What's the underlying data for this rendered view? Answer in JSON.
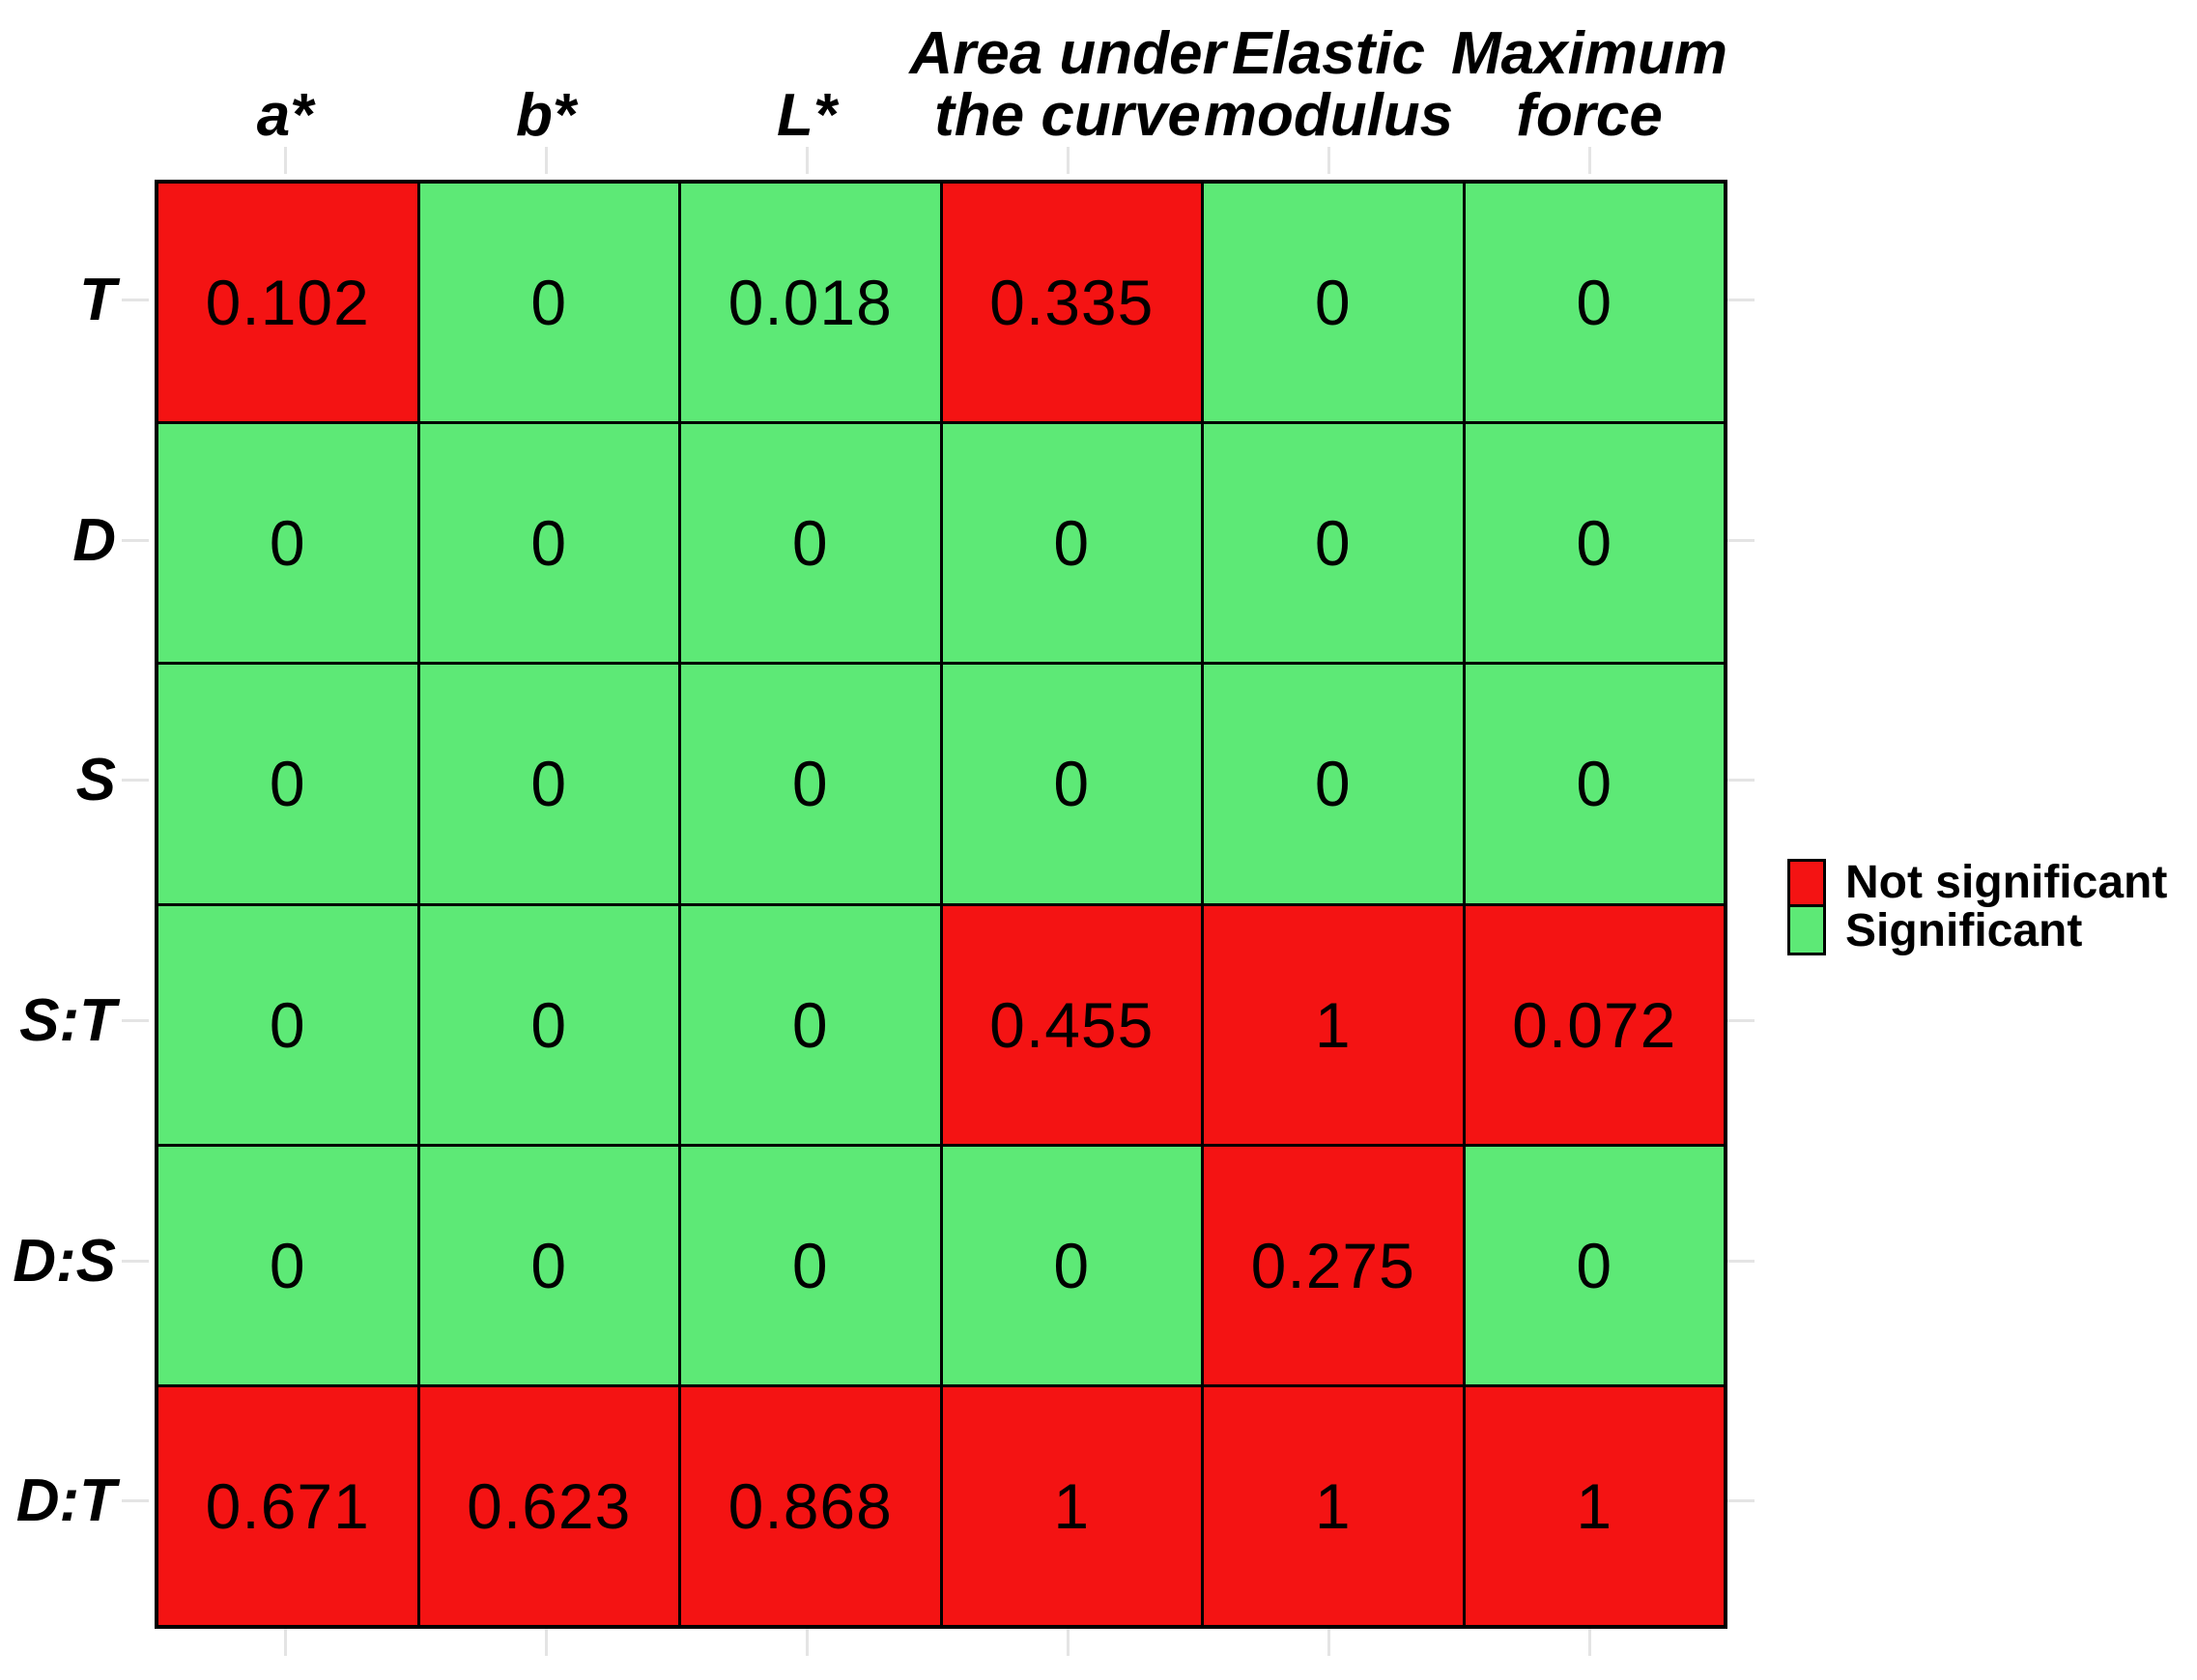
{
  "chart_data": {
    "type": "heatmap",
    "title": "",
    "description": "Matrix of p-values colored by statistical significance",
    "columns": [
      "a*",
      "b*",
      "L*",
      "Area under the curve",
      "Elastic modulus",
      "Maximum force"
    ],
    "column_header_lines": [
      [
        "a*"
      ],
      [
        "b*"
      ],
      [
        "L*"
      ],
      [
        "Area under",
        "the curve"
      ],
      [
        "Elastic",
        "modulus"
      ],
      [
        "Maximum",
        "force"
      ]
    ],
    "rows": [
      "T",
      "D",
      "S",
      "S:T",
      "D:S",
      "D:T"
    ],
    "values": [
      [
        0.102,
        0,
        0.018,
        0.335,
        0,
        0
      ],
      [
        0,
        0,
        0,
        0,
        0,
        0
      ],
      [
        0,
        0,
        0,
        0,
        0,
        0
      ],
      [
        0,
        0,
        0,
        0.455,
        1,
        0.072
      ],
      [
        0,
        0,
        0,
        0,
        0.275,
        0
      ],
      [
        0.671,
        0.623,
        0.868,
        1,
        1,
        1
      ]
    ],
    "significance": [
      [
        "not_significant",
        "significant",
        "significant",
        "not_significant",
        "significant",
        "significant"
      ],
      [
        "significant",
        "significant",
        "significant",
        "significant",
        "significant",
        "significant"
      ],
      [
        "significant",
        "significant",
        "significant",
        "significant",
        "significant",
        "significant"
      ],
      [
        "significant",
        "significant",
        "significant",
        "not_significant",
        "not_significant",
        "not_significant"
      ],
      [
        "significant",
        "significant",
        "significant",
        "significant",
        "not_significant",
        "significant"
      ],
      [
        "not_significant",
        "not_significant",
        "not_significant",
        "not_significant",
        "not_significant",
        "not_significant"
      ]
    ],
    "colors": {
      "significant": "#5de976",
      "not_significant": "#f41313",
      "gridline": "#000000",
      "tick": "#e4e4e4",
      "text": "#000000"
    },
    "legend": {
      "position": "right",
      "items": [
        {
          "label": "Not significant",
          "color": "#f41313"
        },
        {
          "label": "Significant",
          "color": "#5de976"
        }
      ]
    },
    "axes": {
      "grid": true,
      "ticks": "all four sides at row/column centers"
    }
  }
}
